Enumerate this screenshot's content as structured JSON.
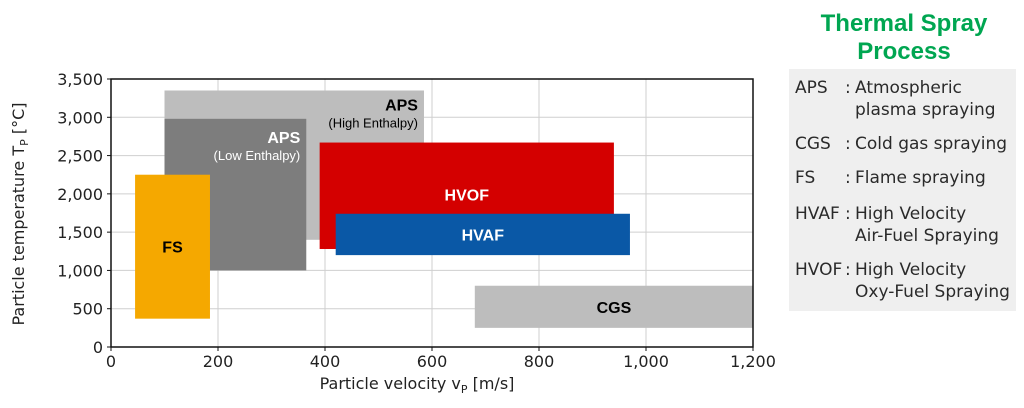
{
  "side_title": "Thermal Spray\nProcess",
  "legend": [
    {
      "abbr": "APS",
      "description": "Atmospheric\nplasma spraying"
    },
    {
      "abbr": "CGS",
      "description": "Cold gas spraying"
    },
    {
      "abbr": "FS",
      "description": "Flame spraying"
    },
    {
      "abbr": "HVAF",
      "description": "High Velocity\nAir-Fuel Spraying"
    },
    {
      "abbr": "HVOF",
      "description": "High Velocity\nOxy-Fuel Spraying"
    }
  ],
  "chart_data": {
    "type": "range-rectangles",
    "xlabel": "Particle velocity v",
    "xlabel_sub": "P",
    "xlabel_unit": " [m/s]",
    "ylabel": "Particle temperature T",
    "ylabel_sub": "P",
    "ylabel_unit": " [°C]",
    "xlim": [
      0,
      1200
    ],
    "ylim": [
      0,
      3500
    ],
    "xticks": [
      0,
      200,
      400,
      600,
      800,
      1000,
      1200
    ],
    "xtick_labels": [
      "0",
      "200",
      "400",
      "600",
      "800",
      "1,000",
      "1,200"
    ],
    "yticks": [
      0,
      500,
      1000,
      1500,
      2000,
      2500,
      3000,
      3500
    ],
    "ytick_labels": [
      "0",
      "500",
      "1,000",
      "1,500",
      "2,000",
      "2,500",
      "3,000",
      "3,500"
    ],
    "grid": true,
    "regions": [
      {
        "name": "APS",
        "sublabel": "(High Enthalpy)",
        "x": [
          100,
          585
        ],
        "y": [
          1400,
          3350
        ],
        "color": "#bdbdbd",
        "text_color": "#000000"
      },
      {
        "name": "APS",
        "sublabel": "(Low Enthalpy)",
        "x": [
          100,
          365
        ],
        "y": [
          1000,
          2980
        ],
        "color": "#7d7d7d",
        "text_color": "#ffffff"
      },
      {
        "name": "HVOF",
        "sublabel": "",
        "x": [
          390,
          940
        ],
        "y": [
          1280,
          2670
        ],
        "color": "#d40000",
        "text_color": "#ffffff"
      },
      {
        "name": "HVAF",
        "sublabel": "",
        "x": [
          420,
          970
        ],
        "y": [
          1200,
          1740
        ],
        "color": "#0a58a6",
        "text_color": "#ffffff"
      },
      {
        "name": "FS",
        "sublabel": "",
        "x": [
          45,
          185
        ],
        "y": [
          370,
          2250
        ],
        "color": "#f5a800",
        "text_color": "#000000"
      },
      {
        "name": "CGS",
        "sublabel": "",
        "x": [
          680,
          1200
        ],
        "y": [
          250,
          800
        ],
        "color": "#bdbdbd",
        "text_color": "#000000"
      }
    ]
  }
}
